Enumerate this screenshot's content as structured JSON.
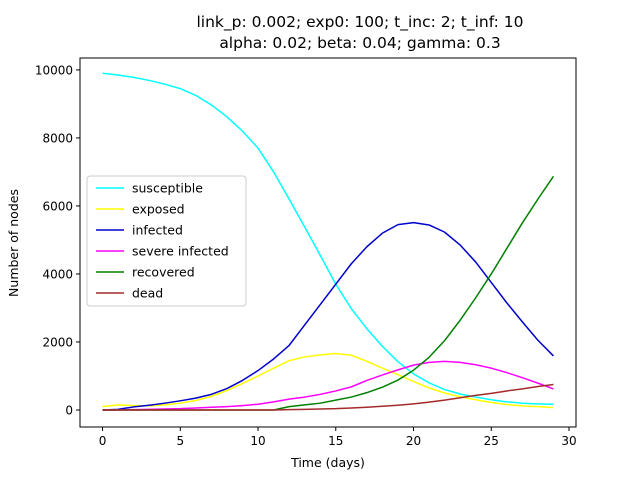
{
  "chart_data": {
    "type": "line",
    "title": [
      "link_p: 0.002; exp0: 100; t_inc: 2; t_inf: 10",
      "alpha: 0.02; beta: 0.04; gamma: 0.3"
    ],
    "xlabel": "Time (days)",
    "ylabel": "Number of nodes",
    "xlim": [
      -1.45,
      30.45
    ],
    "ylim": [
      -500,
      10350
    ],
    "xticks": [
      0,
      5,
      10,
      15,
      20,
      25,
      30
    ],
    "yticks": [
      0,
      2000,
      4000,
      6000,
      8000,
      10000
    ],
    "grid": false,
    "legend_position": "center-left",
    "x": [
      0,
      1,
      2,
      3,
      4,
      5,
      6,
      7,
      8,
      9,
      10,
      11,
      12,
      13,
      14,
      15,
      16,
      17,
      18,
      19,
      20,
      21,
      22,
      23,
      24,
      25,
      26,
      27,
      28,
      29
    ],
    "series": [
      {
        "name": "susceptible",
        "color": "#00ffff",
        "values": [
          9900,
          9850,
          9780,
          9690,
          9580,
          9450,
          9250,
          8970,
          8620,
          8200,
          7700,
          7000,
          6200,
          5380,
          4550,
          3700,
          2980,
          2390,
          1870,
          1420,
          1060,
          800,
          600,
          470,
          380,
          300,
          240,
          200,
          180,
          170
        ]
      },
      {
        "name": "exposed",
        "color": "#ffff00",
        "values": [
          100,
          150,
          130,
          120,
          150,
          200,
          280,
          400,
          570,
          780,
          1000,
          1230,
          1450,
          1560,
          1620,
          1660,
          1610,
          1430,
          1230,
          1040,
          840,
          650,
          500,
          390,
          300,
          220,
          160,
          120,
          100,
          70
        ]
      },
      {
        "name": "infected",
        "color": "#0000cd",
        "values": [
          0,
          20,
          90,
          140,
          200,
          270,
          350,
          460,
          630,
          870,
          1160,
          1500,
          1900,
          2500,
          3100,
          3700,
          4300,
          4800,
          5200,
          5450,
          5510,
          5440,
          5230,
          4850,
          4350,
          3750,
          3150,
          2590,
          2050,
          1590
        ]
      },
      {
        "name": "severe infected",
        "color": "#ff00ff",
        "values": [
          0,
          0,
          10,
          20,
          30,
          40,
          60,
          80,
          100,
          130,
          170,
          240,
          320,
          380,
          460,
          560,
          680,
          870,
          1030,
          1180,
          1320,
          1400,
          1430,
          1400,
          1330,
          1230,
          1100,
          950,
          790,
          620
        ]
      },
      {
        "name": "recovered",
        "color": "#008000",
        "values": [
          0,
          0,
          0,
          0,
          0,
          0,
          0,
          0,
          0,
          0,
          0,
          0,
          100,
          150,
          200,
          290,
          380,
          510,
          670,
          880,
          1170,
          1550,
          2040,
          2640,
          3300,
          4000,
          4750,
          5500,
          6200,
          6870
        ]
      },
      {
        "name": "dead",
        "color": "#a52a2a",
        "values": [
          0,
          0,
          0,
          0,
          0,
          0,
          0,
          0,
          0,
          0,
          0,
          0,
          10,
          20,
          30,
          40,
          60,
          80,
          110,
          140,
          180,
          230,
          290,
          360,
          430,
          490,
          560,
          620,
          690,
          750
        ]
      }
    ]
  }
}
